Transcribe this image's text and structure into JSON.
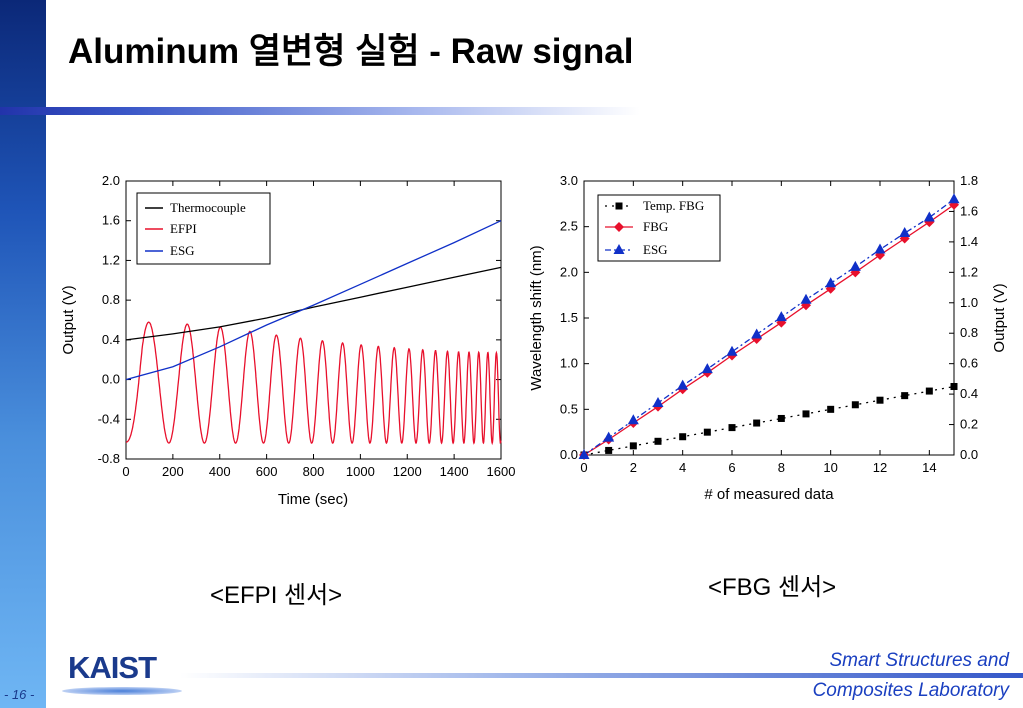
{
  "slide": {
    "title": "Aluminum 열변형 실험 - Raw signal",
    "caption_left": "<EFPI 센서>",
    "caption_right": "<FBG 센서>",
    "page_number": "- 16 -",
    "logo_text": "KAIST",
    "lab_line1": "Smart Structures and",
    "lab_line2": "Composites Laboratory"
  },
  "chart_data": [
    {
      "type": "line",
      "xlabel": "Time (sec)",
      "ylabel": "Output (V)",
      "xlim": [
        0,
        1600
      ],
      "ylim": [
        -0.8,
        2.0
      ],
      "xticks": [
        "0",
        "200",
        "400",
        "600",
        "800",
        "1000",
        "1200",
        "1400",
        "1600"
      ],
      "yticks": [
        "-0.8",
        "-0.4",
        "0.0",
        "0.4",
        "0.8",
        "1.2",
        "1.6",
        "2.0"
      ],
      "legend_position": "top-left",
      "series": [
        {
          "name": "Thermocouple",
          "color": "#000000",
          "x": [
            0,
            200,
            400,
            600,
            800,
            1000,
            1200,
            1400,
            1600
          ],
          "y": [
            0.4,
            0.46,
            0.53,
            0.62,
            0.73,
            0.83,
            0.93,
            1.03,
            1.13
          ]
        },
        {
          "name": "EFPI",
          "color": "#e8102c",
          "envelope_upper": {
            "x": [
              0,
              70,
              200,
              400,
              600,
              800,
              1000,
              1200,
              1400,
              1600
            ],
            "y": [
              0.0,
              0.58,
              0.57,
              0.53,
              0.46,
              0.4,
              0.35,
              0.31,
              0.28,
              0.27
            ]
          },
          "envelope_lower": {
            "x": [
              0,
              200,
              400,
              600,
              800,
              1000,
              1200,
              1400,
              1600
            ],
            "y": [
              -0.63,
              -0.64,
              -0.64,
              -0.64,
              -0.64,
              -0.64,
              -0.64,
              -0.64,
              -0.64
            ]
          },
          "period_start": 220,
          "period_end": 34
        },
        {
          "name": "ESG",
          "color": "#1030c8",
          "x": [
            0,
            200,
            400,
            600,
            800,
            1000,
            1200,
            1400,
            1600
          ],
          "y": [
            0.0,
            0.13,
            0.33,
            0.55,
            0.75,
            0.96,
            1.17,
            1.38,
            1.6
          ]
        }
      ]
    },
    {
      "type": "line",
      "xlabel": "# of measured data",
      "ylabel": "Wavelength shift (nm)",
      "y2label": "Output (V)",
      "xlim": [
        0,
        15
      ],
      "ylim": [
        0,
        3.0
      ],
      "y2lim": [
        0,
        1.8
      ],
      "xticks": [
        "0",
        "2",
        "4",
        "6",
        "8",
        "10",
        "12",
        "14"
      ],
      "yticks": [
        "0.0",
        "0.5",
        "1.0",
        "1.5",
        "2.0",
        "2.5",
        "3.0"
      ],
      "y2ticks": [
        "0.0",
        "0.2",
        "0.4",
        "0.6",
        "0.8",
        "1.0",
        "1.2",
        "1.4",
        "1.6",
        "1.8"
      ],
      "legend_position": "top-left",
      "series": [
        {
          "name": "Temp. FBG",
          "color": "#000000",
          "marker": "square",
          "x": [
            0,
            1,
            2,
            3,
            4,
            5,
            6,
            7,
            8,
            9,
            10,
            11,
            12,
            13,
            14,
            15
          ],
          "y": [
            0.0,
            0.05,
            0.1,
            0.15,
            0.2,
            0.25,
            0.3,
            0.35,
            0.4,
            0.45,
            0.5,
            0.55,
            0.6,
            0.65,
            0.7,
            0.75
          ]
        },
        {
          "name": "FBG",
          "color": "#e8102c",
          "marker": "diamond",
          "x": [
            0,
            1,
            2,
            3,
            4,
            5,
            6,
            7,
            8,
            9,
            10,
            11,
            12,
            13,
            14,
            15
          ],
          "y": [
            0.0,
            0.17,
            0.35,
            0.53,
            0.72,
            0.9,
            1.09,
            1.27,
            1.45,
            1.64,
            1.82,
            2.0,
            2.19,
            2.37,
            2.55,
            2.74
          ]
        },
        {
          "name": "ESG",
          "color": "#1030c8",
          "marker": "triangle",
          "x": [
            0,
            1,
            2,
            3,
            4,
            5,
            6,
            7,
            8,
            9,
            10,
            11,
            12,
            13,
            14,
            15
          ],
          "y": [
            0.0,
            0.19,
            0.38,
            0.57,
            0.76,
            0.94,
            1.13,
            1.32,
            1.51,
            1.7,
            1.88,
            2.06,
            2.25,
            2.43,
            2.6,
            2.8
          ]
        }
      ]
    }
  ]
}
